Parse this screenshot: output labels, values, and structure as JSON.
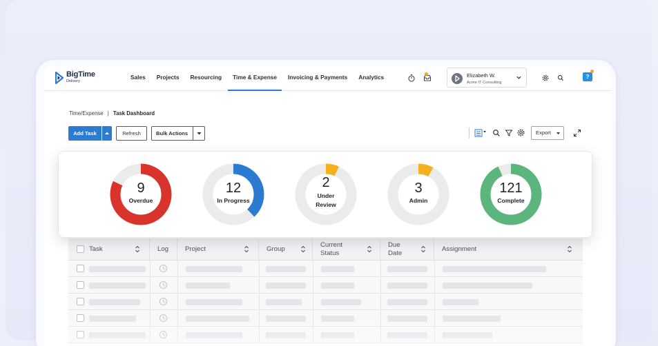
{
  "brand": {
    "name": "BigTime",
    "product": "Delivery",
    "accent": "#2b7bd1"
  },
  "nav": {
    "items": [
      {
        "label": "Sales"
      },
      {
        "label": "Projects"
      },
      {
        "label": "Resourcing"
      },
      {
        "label": "Time & Expense",
        "active": true
      },
      {
        "label": "Invoicing & Payments"
      },
      {
        "label": "Analytics"
      }
    ],
    "icons": [
      "stopwatch-icon",
      "inbox-icon",
      "gear-icon",
      "search-icon",
      "help-icon"
    ],
    "help_label": "?",
    "user": {
      "name": "Elizabeth W.",
      "company": "Acme IT Consulting"
    }
  },
  "breadcrumb": {
    "parent": "Time/Expense",
    "separator": "|",
    "current": "Task Dashboard"
  },
  "toolbar": {
    "add_task": "Add Task",
    "refresh": "Refresh",
    "bulk_actions": "Bulk Actions",
    "export": "Export"
  },
  "summary": [
    {
      "count": "9",
      "label": "Overdue",
      "fraction": 0.82,
      "color": "#d9342b",
      "start": 0.0
    },
    {
      "count": "12",
      "label": "In Progress",
      "fraction": 0.38,
      "color": "#2b7bd1",
      "start": 0.0
    },
    {
      "count": "2",
      "label": "Under Review",
      "fraction": 0.07,
      "color": "#f3b11d",
      "start": 0.0
    },
    {
      "count": "3",
      "label": "Admin",
      "fraction": 0.08,
      "color": "#f3b11d",
      "start": 0.0
    },
    {
      "count": "121",
      "label": "Complete",
      "fraction": 0.93,
      "color": "#5cb57c",
      "start": 0.0
    }
  ],
  "table": {
    "columns": [
      {
        "label": "Task",
        "sortable": true
      },
      {
        "label": "Log",
        "sortable": false
      },
      {
        "label": "Project",
        "sortable": true
      },
      {
        "label": "Group",
        "sortable": true
      },
      {
        "label": "Current Status",
        "sortable": true
      },
      {
        "label": "Due Date",
        "sortable": true
      },
      {
        "label": "Assignment",
        "sortable": true
      }
    ]
  }
}
